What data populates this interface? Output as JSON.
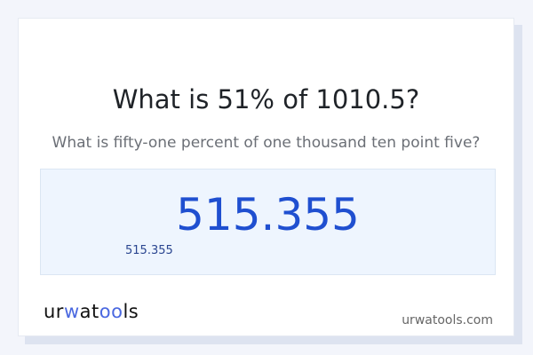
{
  "title": "What is 51% of 1010.5?",
  "subtitle": "What is fifty-one percent of one thousand ten point five?",
  "answer": {
    "main": "515.355",
    "secondary": "515.355"
  },
  "footer": {
    "logo": {
      "part1": "ur",
      "part2": "w",
      "part3": "at",
      "part4": "oo",
      "part5": "ls"
    },
    "domain": "urwatools.com"
  },
  "colors": {
    "accent": "#1f4fd0",
    "answer_bg": "#eef5fe",
    "logo_accent": "#4a68e0"
  }
}
